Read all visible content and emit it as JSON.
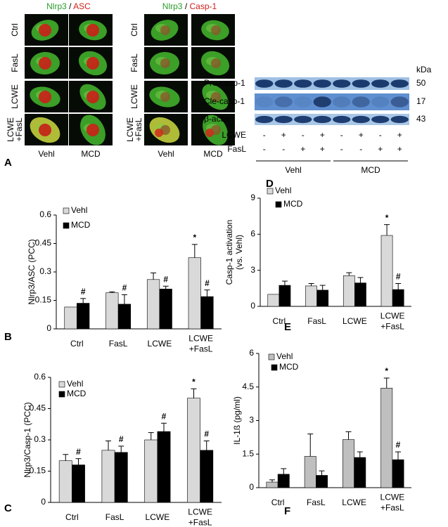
{
  "panel_a": {
    "label": "A",
    "titles": [
      [
        "Nlrp3",
        "/",
        "ASC"
      ],
      [
        "Nlrp3",
        "/",
        "Casp-1"
      ]
    ],
    "rows": [
      "Ctrl",
      "FasL",
      "LCWE",
      "LCWE +FasL"
    ],
    "columns": [
      "Vehl",
      "MCD"
    ]
  },
  "panel_d": {
    "label": "D",
    "units": "kDa",
    "bands": [
      {
        "name": "Pro-casp-1",
        "kda": 50
      },
      {
        "name": "Cle-casp-1",
        "kda": 17
      },
      {
        "name": "β-actin",
        "kda": 43
      }
    ],
    "treatments": [
      {
        "name": "LCWE",
        "signs": [
          "-",
          "+",
          "-",
          "+",
          "-",
          "+",
          "-",
          "+"
        ]
      },
      {
        "name": "FasL",
        "signs": [
          "-",
          "-",
          "+",
          "+",
          "-",
          "-",
          "+",
          "+"
        ]
      }
    ],
    "groups": [
      "Vehl",
      "MCD"
    ]
  },
  "chart_data": [
    {
      "type": "bar",
      "panel_label": "B",
      "ylabel": "Nlrp3/ASC (PCC)",
      "categories": [
        "Ctrl",
        "FasL",
        "LCWE",
        "LCWE +FasL"
      ],
      "ylim": [
        0,
        0.6
      ],
      "yticks": [
        0,
        0.15,
        0.3,
        0.45,
        0.6
      ],
      "series": [
        {
          "name": "Vehl",
          "color": "#d9d9d9",
          "values": [
            0.115,
            0.19,
            0.26,
            0.375
          ],
          "errors": [
            0.0,
            0.005,
            0.035,
            0.07
          ],
          "markers": [
            null,
            null,
            null,
            "*"
          ]
        },
        {
          "name": "MCD",
          "color": "#000000",
          "values": [
            0.135,
            0.13,
            0.21,
            0.17
          ],
          "errors": [
            0.025,
            0.05,
            0.015,
            0.035
          ],
          "markers": [
            "#",
            "#",
            "#",
            "#"
          ]
        }
      ]
    },
    {
      "type": "bar",
      "panel_label": "C",
      "ylabel": "Nlrp3/Casp-1 (PCC)",
      "categories": [
        "Ctrl",
        "FasL",
        "LCWE",
        "LCWE +FasL"
      ],
      "ylim": [
        0,
        0.6
      ],
      "yticks": [
        0,
        0.15,
        0.3,
        0.45,
        0.6
      ],
      "series": [
        {
          "name": "Vehl",
          "color": "#d9d9d9",
          "values": [
            0.2,
            0.25,
            0.3,
            0.5
          ],
          "errors": [
            0.03,
            0.045,
            0.035,
            0.045
          ],
          "markers": [
            null,
            null,
            null,
            "*"
          ]
        },
        {
          "name": "MCD",
          "color": "#000000",
          "values": [
            0.18,
            0.24,
            0.34,
            0.25
          ],
          "errors": [
            0.03,
            0.03,
            0.04,
            0.045
          ],
          "markers": [
            "#",
            "#",
            "#",
            "#"
          ]
        }
      ]
    },
    {
      "type": "bar",
      "panel_label": "E",
      "ylabel": "Casp-1 activation (vs. Vehl)",
      "categories": [
        "Ctrl",
        "FasL",
        "LCWE",
        "LCWE +FasL"
      ],
      "ylim": [
        0,
        9
      ],
      "yticks": [
        0,
        3,
        6,
        9
      ],
      "series": [
        {
          "name": "Vehl",
          "color": "#d9d9d9",
          "values": [
            1.0,
            1.7,
            2.55,
            5.9
          ],
          "errors": [
            0.0,
            0.2,
            0.25,
            0.9
          ],
          "markers": [
            null,
            null,
            null,
            "*"
          ]
        },
        {
          "name": "MCD",
          "color": "#000000",
          "values": [
            1.75,
            1.35,
            1.95,
            1.4
          ],
          "errors": [
            0.35,
            0.4,
            0.45,
            0.5
          ],
          "markers": [
            null,
            null,
            null,
            "#"
          ]
        }
      ]
    },
    {
      "type": "bar",
      "panel_label": "F",
      "ylabel": "IL-1ß (pg/ml)",
      "categories": [
        "Ctrl",
        "FasL",
        "LCWE",
        "LCWE +FasL"
      ],
      "ylim": [
        0,
        6
      ],
      "yticks": [
        0,
        1.5,
        3,
        4.5,
        6
      ],
      "series": [
        {
          "name": "Vehl",
          "color": "#bfbfbf",
          "values": [
            0.25,
            1.4,
            2.15,
            4.45
          ],
          "errors": [
            0.1,
            1.0,
            0.35,
            0.45
          ],
          "markers": [
            null,
            null,
            null,
            "*"
          ]
        },
        {
          "name": "MCD",
          "color": "#000000",
          "values": [
            0.6,
            0.55,
            1.35,
            1.25
          ],
          "errors": [
            0.25,
            0.2,
            0.25,
            0.35
          ],
          "markers": [
            null,
            null,
            null,
            "#"
          ]
        }
      ]
    }
  ]
}
